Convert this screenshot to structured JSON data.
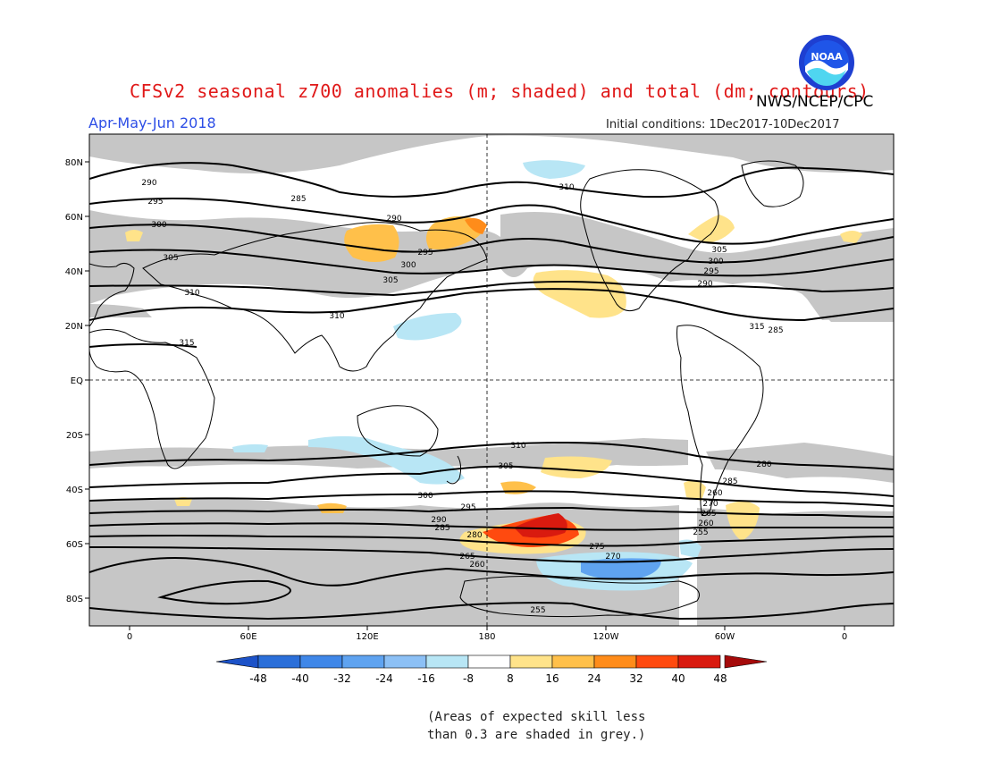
{
  "header": {
    "title": "CFSv2 seasonal z700 anomalies (m; shaded) and total (dm; contours)",
    "agency": "NWS/NCEP/CPC",
    "period": "Apr-May-Jun 2018",
    "initial_conditions": "Initial conditions: 1Dec2017-10Dec2017",
    "logo_text": "NOAA"
  },
  "map": {
    "lat_labels": [
      "80N",
      "60N",
      "40N",
      "20N",
      "EQ",
      "20S",
      "40S",
      "60S",
      "80S"
    ],
    "lon_labels": [
      "0",
      "60E",
      "120E",
      "180",
      "120W",
      "60W",
      "0"
    ],
    "contour_labels": [
      "285",
      "290",
      "295",
      "300",
      "305",
      "310",
      "315",
      "310",
      "305",
      "300",
      "295",
      "290",
      "285",
      "280",
      "275",
      "270",
      "265",
      "260",
      "255",
      "290",
      "295",
      "300",
      "305",
      "310",
      "315",
      "310",
      "305",
      "300",
      "295",
      "290",
      "285",
      "280",
      "285",
      "260",
      "270",
      "265",
      "260",
      "255"
    ]
  },
  "colorbar": {
    "ticks": [
      "-48",
      "-40",
      "-32",
      "-24",
      "-16",
      "-8",
      "8",
      "16",
      "24",
      "32",
      "40",
      "48"
    ],
    "colors": [
      "#2b6fd9",
      "#3f87e8",
      "#5fa3f0",
      "#8cc0f5",
      "#b8e6f5",
      "#ffffff",
      "#ffe38a",
      "#ffc04a",
      "#ff8c1a",
      "#ff4a0f",
      "#d91a0f"
    ],
    "under_color": "#1c52c8",
    "over_color": "#a50a0a"
  },
  "footnote": {
    "line1": "(Areas of expected skill less",
    "line2": "than 0.3 are shaded in grey.)"
  }
}
